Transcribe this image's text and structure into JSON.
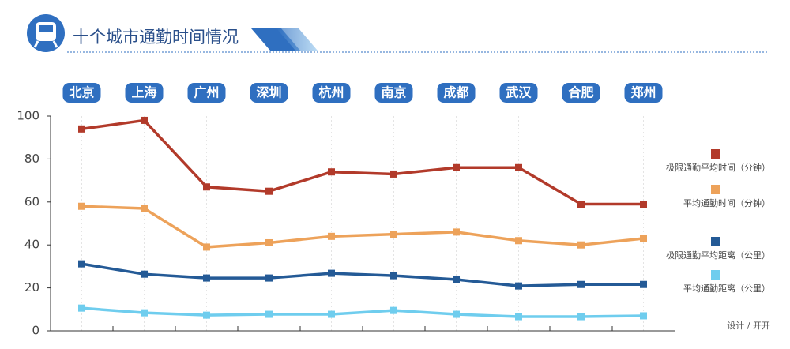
{
  "chart_data": {
    "type": "line",
    "title": "十个城市通勤时间情况",
    "credit": "设计 / 开开",
    "categories": [
      "北京",
      "上海",
      "广州",
      "深圳",
      "杭州",
      "南京",
      "成都",
      "武汉",
      "合肥",
      "郑州"
    ],
    "series": [
      {
        "name": "极限通勤平均时间（分钟）",
        "color": "#b23a2a",
        "values": [
          94,
          98,
          67,
          65,
          74,
          73,
          76,
          76,
          59,
          59
        ]
      },
      {
        "name": "平均通勤时间（分钟）",
        "color": "#eda25a",
        "values": [
          58,
          57,
          39,
          41,
          44,
          45,
          46,
          42,
          40,
          43
        ]
      },
      {
        "name": "极限通勤平均距离（公里）",
        "color": "#245a96",
        "values": [
          31.2,
          26.4,
          24.6,
          24.6,
          26.8,
          25.7,
          23.9,
          20.9,
          21.6,
          21.6
        ]
      },
      {
        "name": "平均通勤距离（公里）",
        "color": "#6fcdee",
        "values": [
          10.6,
          8.4,
          7.3,
          7.7,
          7.7,
          9.5,
          7.7,
          6.6,
          6.6,
          7.0
        ]
      }
    ],
    "ylim": [
      0,
      100
    ],
    "yticks": [
      0,
      20,
      40,
      60,
      80,
      100
    ],
    "grid": true
  }
}
